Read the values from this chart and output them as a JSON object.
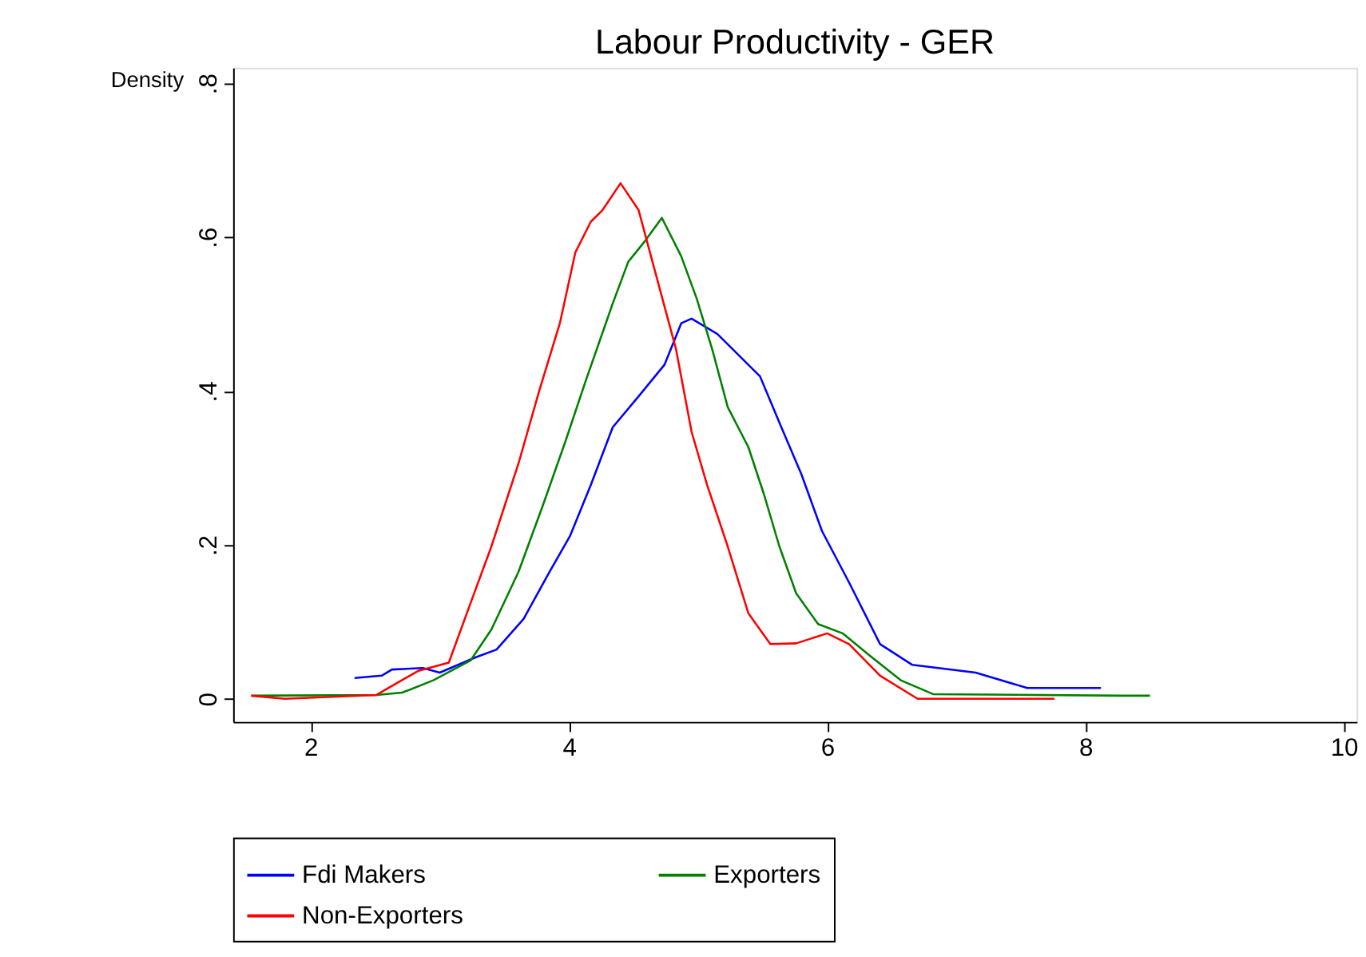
{
  "chart_data": {
    "type": "line",
    "title": "Labour Productivity - GER",
    "ylabel": "Density",
    "xlim": [
      1.4,
      10.1
    ],
    "ylim": [
      -0.03,
      0.82
    ],
    "xticks": [
      2,
      4,
      6,
      8,
      10
    ],
    "yticks": [
      0,
      {
        "value": 0.2,
        "label": ".2"
      },
      {
        "value": 0.4,
        "label": ".4"
      },
      {
        "value": 0.6,
        "label": ".6"
      },
      {
        "value": 0.8,
        "label": ".8"
      }
    ],
    "grid": false,
    "legend": "bottom",
    "marker": "none",
    "line_style": "solid",
    "series": [
      {
        "name": "Fdi Makers",
        "color": "#0000ff",
        "x": [
          2.34,
          2.55,
          2.63,
          2.87,
          3.0,
          3.28,
          3.44,
          3.65,
          3.85,
          4.01,
          4.17,
          4.34,
          4.54,
          4.74,
          4.87,
          4.95,
          5.15,
          5.48,
          5.63,
          5.8,
          5.96,
          6.17,
          6.41,
          6.66,
          7.15,
          7.55,
          8.12
        ],
        "values": [
          0.027,
          0.03,
          0.038,
          0.04,
          0.034,
          0.054,
          0.064,
          0.104,
          0.165,
          0.212,
          0.278,
          0.353,
          0.393,
          0.434,
          0.488,
          0.494,
          0.474,
          0.419,
          0.359,
          0.292,
          0.218,
          0.151,
          0.071,
          0.044,
          0.034,
          0.014,
          0.014
        ]
      },
      {
        "name": "Exporters",
        "color": "#008000",
        "x": [
          1.54,
          2.51,
          2.71,
          2.95,
          3.24,
          3.4,
          3.61,
          3.8,
          3.97,
          4.13,
          4.34,
          4.46,
          4.59,
          4.72,
          4.87,
          4.99,
          5.11,
          5.23,
          5.39,
          5.51,
          5.63,
          5.76,
          5.93,
          6.12,
          6.33,
          6.57,
          6.82,
          8.28,
          8.5
        ],
        "values": [
          0.004,
          0.005,
          0.008,
          0.024,
          0.05,
          0.09,
          0.165,
          0.252,
          0.333,
          0.413,
          0.514,
          0.568,
          0.595,
          0.625,
          0.575,
          0.52,
          0.454,
          0.379,
          0.327,
          0.266,
          0.198,
          0.137,
          0.097,
          0.085,
          0.056,
          0.024,
          0.006,
          0.004,
          0.004
        ]
      },
      {
        "name": "Non-Exporters",
        "color": "#ff0000",
        "x": [
          1.54,
          1.8,
          2.51,
          2.83,
          3.07,
          3.24,
          3.4,
          3.61,
          3.77,
          3.93,
          4.05,
          4.17,
          4.26,
          4.4,
          4.54,
          4.66,
          4.83,
          4.95,
          5.07,
          5.23,
          5.39,
          5.56,
          5.76,
          6.0,
          6.17,
          6.41,
          6.7,
          7.76
        ],
        "values": [
          0.004,
          0.0,
          0.005,
          0.036,
          0.047,
          0.125,
          0.198,
          0.306,
          0.4,
          0.488,
          0.58,
          0.62,
          0.635,
          0.67,
          0.635,
          0.56,
          0.454,
          0.347,
          0.278,
          0.198,
          0.111,
          0.071,
          0.072,
          0.085,
          0.071,
          0.03,
          0.0,
          0.0
        ]
      }
    ]
  }
}
